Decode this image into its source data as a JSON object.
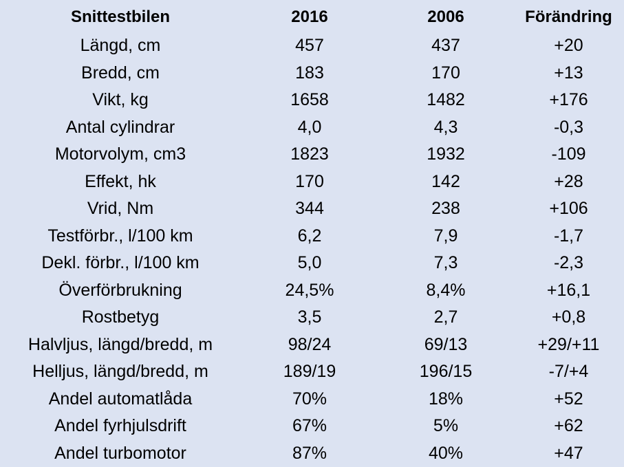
{
  "table": {
    "headers": [
      "Snittestbilen",
      "2016",
      "2006",
      "Förändring"
    ],
    "rows": [
      [
        "Längd, cm",
        "457",
        "437",
        "+20"
      ],
      [
        "Bredd, cm",
        "183",
        "170",
        "+13"
      ],
      [
        "Vikt, kg",
        "1658",
        "1482",
        "+176"
      ],
      [
        "Antal cylindrar",
        "4,0",
        "4,3",
        "-0,3"
      ],
      [
        "Motorvolym, cm3",
        "1823",
        "1932",
        "-109"
      ],
      [
        "Effekt, hk",
        "170",
        "142",
        "+28"
      ],
      [
        "Vrid, Nm",
        "344",
        "238",
        "+106"
      ],
      [
        "Testförbr., l/100 km",
        "6,2",
        "7,9",
        "-1,7"
      ],
      [
        "Dekl. förbr., l/100 km",
        "5,0",
        "7,3",
        "-2,3"
      ],
      [
        "Överförbrukning",
        "24,5%",
        "8,4%",
        "+16,1"
      ],
      [
        "Rostbetyg",
        "3,5",
        "2,7",
        "+0,8"
      ],
      [
        "Halvljus, längd/bredd, m",
        "98/24",
        "69/13",
        "+29/+11"
      ],
      [
        "Helljus, längd/bredd, m",
        "189/19",
        "196/15",
        "-7/+4"
      ],
      [
        "Andel automatlåda",
        "70%",
        "18%",
        "+52"
      ],
      [
        "Andel fyrhjulsdrift",
        "67%",
        "5%",
        "+62"
      ],
      [
        "Andel turbomotor",
        "87%",
        "40%",
        "+47"
      ]
    ]
  },
  "colors": {
    "background": "#dce3f2",
    "text": "#000000"
  }
}
